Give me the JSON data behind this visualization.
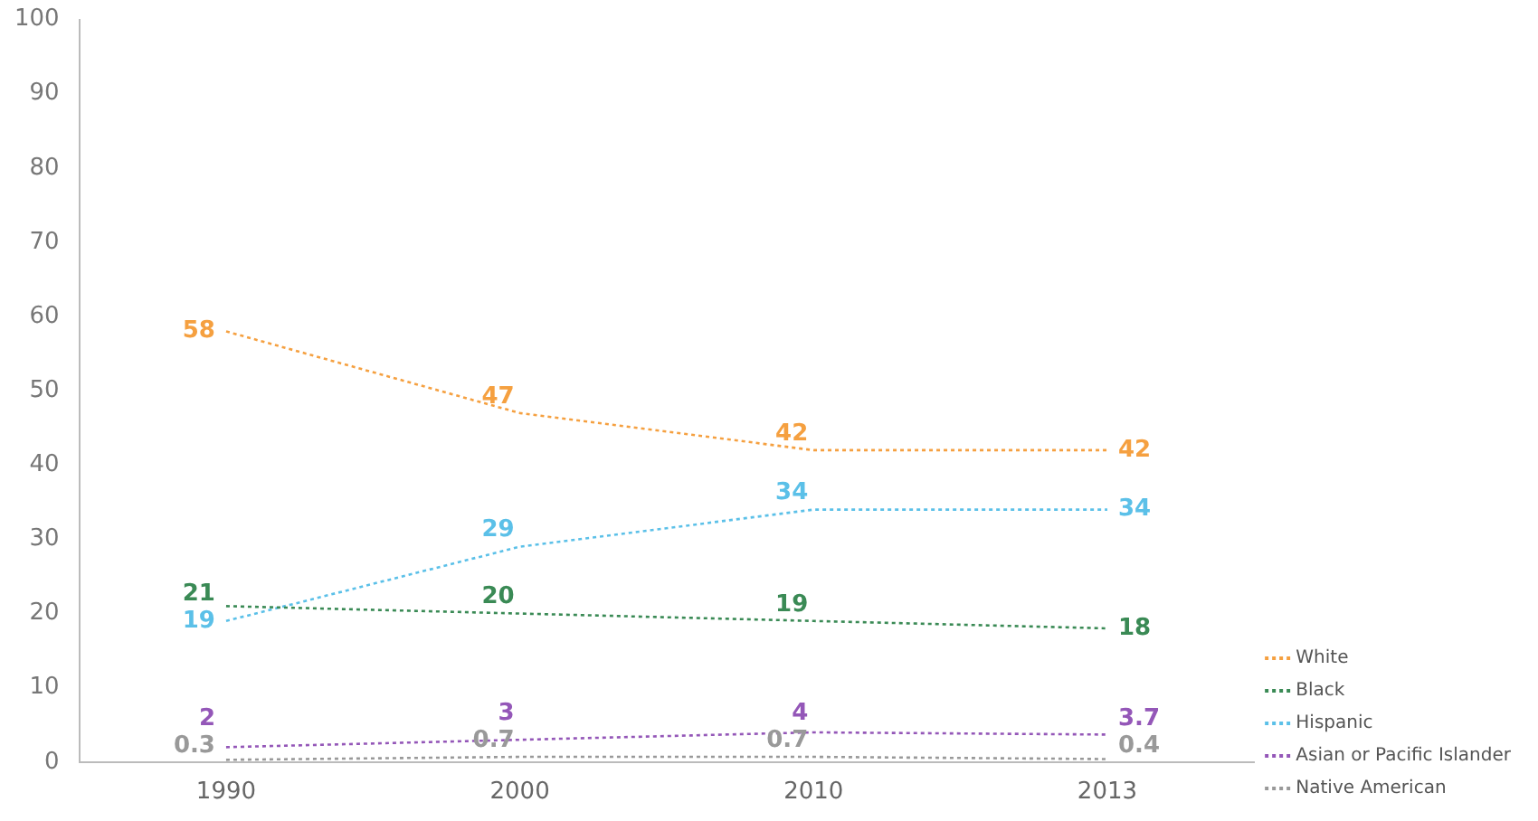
{
  "chart_data": {
    "type": "line",
    "categories": [
      "1990",
      "2000",
      "2010",
      "2013"
    ],
    "series": [
      {
        "name": "White",
        "color": "#f5a040",
        "values": [
          58,
          47,
          42,
          42
        ]
      },
      {
        "name": "Black",
        "color": "#3a8a55",
        "values": [
          21,
          20,
          19,
          18
        ]
      },
      {
        "name": "Hispanic",
        "color": "#5bc0e8",
        "values": [
          19,
          29,
          34,
          34
        ]
      },
      {
        "name": "Asian or Pacific Islander",
        "color": "#9457b8",
        "values": [
          2,
          3,
          4,
          3.7
        ]
      },
      {
        "name": "Native American",
        "color": "#999999",
        "values": [
          0.3,
          0.7,
          0.7,
          0.4
        ]
      }
    ],
    "ylim": [
      0,
      100
    ],
    "yticks": [
      0,
      10,
      20,
      30,
      40,
      50,
      60,
      70,
      80,
      90,
      100
    ],
    "grid": false,
    "legend": "bottom right",
    "marker": "none",
    "line_style": "dotted",
    "data_labels": true
  }
}
